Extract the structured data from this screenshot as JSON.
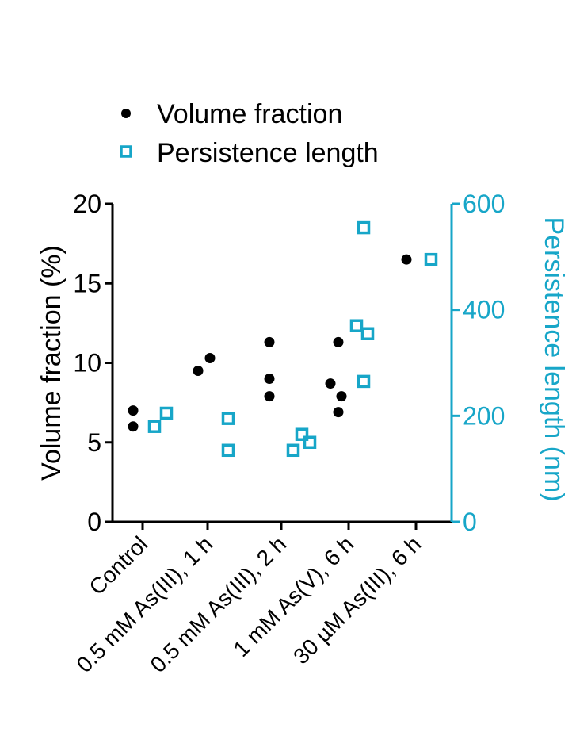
{
  "chart_data": {
    "type": "scatter",
    "categories": [
      "Control",
      "0.5 mM As(III), 1 h",
      "0.5 mM As(III), 2 h",
      "1 mM As(V), 6 h",
      "30 µM As(III), 6 h"
    ],
    "ylabel": "Volume fraction (%)",
    "ylim": [
      0,
      20
    ],
    "yticks": [
      "0",
      "5",
      "10",
      "15",
      "20"
    ],
    "y2label": "Persistence length (nm)",
    "y2lim": [
      0,
      600
    ],
    "y2ticks": [
      "0",
      "200",
      "400",
      "600"
    ],
    "legend": {
      "placement": "top-left",
      "entries": [
        "Volume fraction",
        "Persistence length"
      ]
    },
    "colors": {
      "volume": "#000000",
      "persistence": "#17a6c8"
    },
    "series": [
      {
        "name": "Volume fraction",
        "axis": "left",
        "marker": "filled-circle",
        "points": [
          {
            "category": 0,
            "y": 7.0
          },
          {
            "category": 0,
            "y": 6.0
          },
          {
            "category": 1,
            "y": 9.5
          },
          {
            "category": 1,
            "y": 10.3
          },
          {
            "category": 2,
            "y": 11.3
          },
          {
            "category": 2,
            "y": 9.0
          },
          {
            "category": 2,
            "y": 7.9
          },
          {
            "category": 3,
            "y": 8.7
          },
          {
            "category": 3,
            "y": 11.3
          },
          {
            "category": 3,
            "y": 7.9
          },
          {
            "category": 3,
            "y": 6.9
          },
          {
            "category": 4,
            "y": 16.5
          }
        ]
      },
      {
        "name": "Persistence length",
        "axis": "right",
        "marker": "open-square",
        "points": [
          {
            "category": 0,
            "y": 180
          },
          {
            "category": 0,
            "y": 205
          },
          {
            "category": 1,
            "y": 195
          },
          {
            "category": 1,
            "y": 135
          },
          {
            "category": 2,
            "y": 135
          },
          {
            "category": 2,
            "y": 165
          },
          {
            "category": 2,
            "y": 150
          },
          {
            "category": 3,
            "y": 370
          },
          {
            "category": 3,
            "y": 355
          },
          {
            "category": 3,
            "y": 555
          },
          {
            "category": 3,
            "y": 265
          },
          {
            "category": 4,
            "y": 495
          }
        ]
      }
    ],
    "grid": false
  }
}
